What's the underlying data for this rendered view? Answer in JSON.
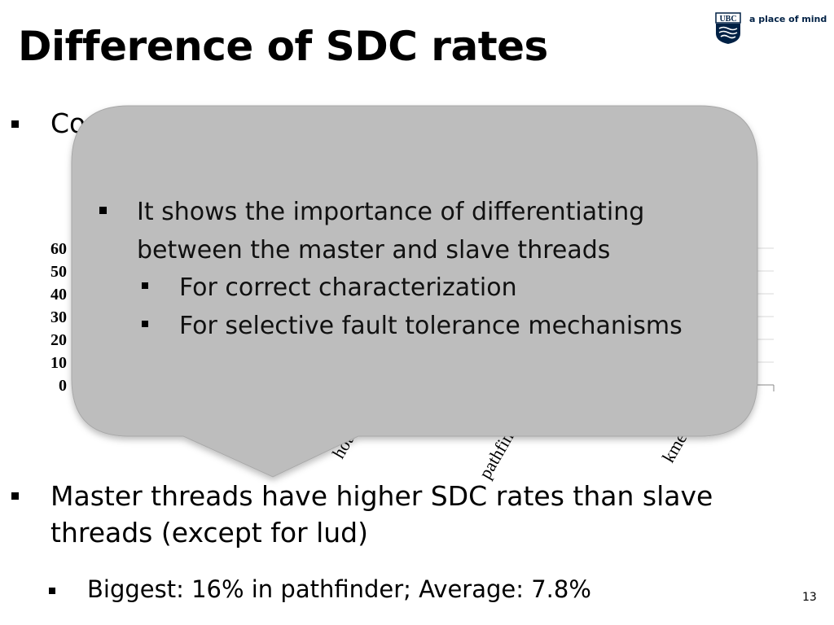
{
  "slide": {
    "title": "Difference of SDC rates",
    "logo_text": "a place of mind",
    "logo_abbrev": "UBC",
    "page_number": "13"
  },
  "bullets": {
    "hidden_first_prefix": "Co",
    "master_text_line1": "Master threads have higher SDC rates than slave",
    "master_text_line2": "threads (except for lud)",
    "biggest_text": "Biggest: 16% in pathfinder; Average: 7.8%"
  },
  "callout": {
    "line1": "It shows the importance of differentiating",
    "line2": "between the master and slave threads",
    "sub1": "For correct characterization",
    "sub2": "For selective fault tolerance mechanisms",
    "fill_color": "#bdbdbd"
  },
  "chart_data": {
    "type": "bar",
    "y_ticks": [
      "60",
      "50",
      "40",
      "30",
      "20",
      "10",
      "0"
    ],
    "ylim": [
      0,
      60
    ],
    "x_labels_visible": [
      "hotsp",
      "pathfin",
      "kme"
    ],
    "grid": true
  }
}
